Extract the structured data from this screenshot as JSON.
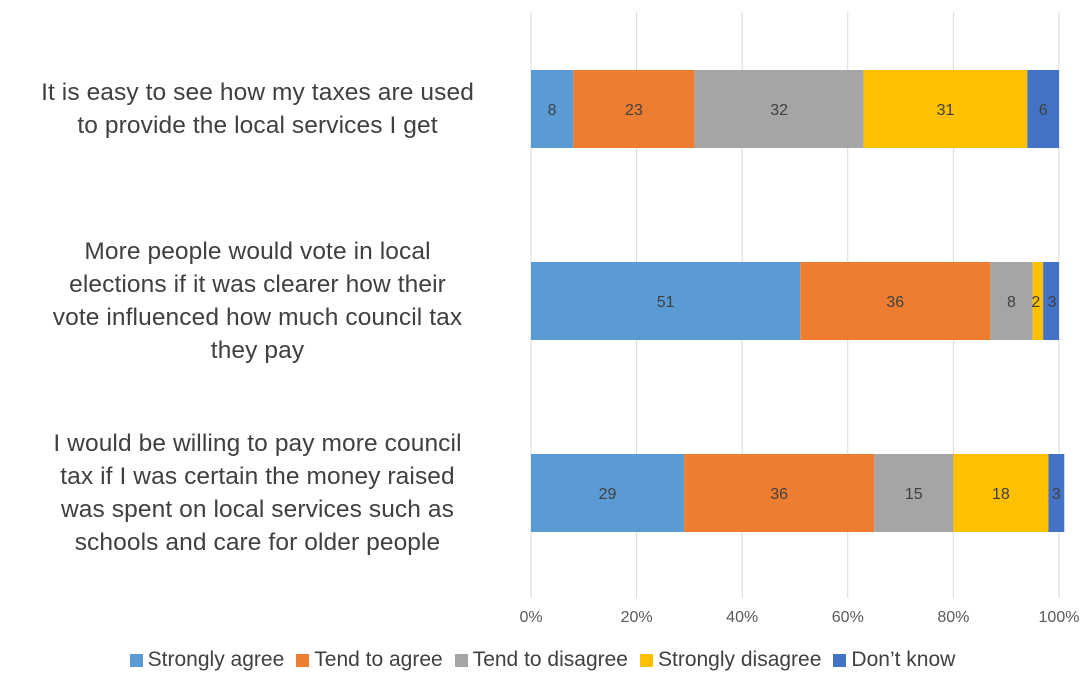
{
  "chart_data": {
    "type": "bar",
    "orientation": "horizontal",
    "stacked": "percent",
    "categories": [
      "It is easy to see how my taxes are used to provide the local services I get",
      "More people would vote in local elections if it was clearer how their vote influenced how much council tax they pay",
      "I would be willing to pay more council tax if I was certain the money raised was spent on local services such as schools and care for older people"
    ],
    "category_lines": [
      [
        "It is easy to see how my taxes are used",
        "to provide the local services I get"
      ],
      [
        "More people would vote in local",
        "elections if it was clearer how their",
        "vote influenced how much council tax",
        "they pay"
      ],
      [
        "I would be willing to pay more council",
        "tax if I was certain the money raised",
        "was spent on local services such as",
        "schools and care for older people"
      ]
    ],
    "series": [
      {
        "name": "Strongly agree",
        "color": "#5B9BD5",
        "values": [
          8,
          51,
          29
        ]
      },
      {
        "name": "Tend to agree",
        "color": "#ED7D31",
        "values": [
          23,
          36,
          36
        ]
      },
      {
        "name": "Tend to disagree",
        "color": "#A5A5A5",
        "values": [
          32,
          8,
          15
        ]
      },
      {
        "name": "Strongly disagree",
        "color": "#FFC000",
        "values": [
          31,
          2,
          18
        ]
      },
      {
        "name": "Don’t know",
        "color": "#4472C4",
        "values": [
          6,
          3,
          3
        ]
      }
    ],
    "x_ticks": [
      "0%",
      "20%",
      "40%",
      "60%",
      "80%",
      "100%"
    ],
    "xlim": [
      0,
      100
    ],
    "grid": true,
    "legend_position": "bottom",
    "title": "",
    "xlabel": "",
    "ylabel": ""
  }
}
